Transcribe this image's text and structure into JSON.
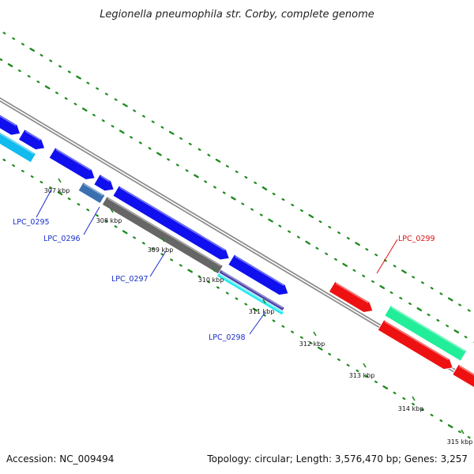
{
  "title": "Legionella pneumophila str. Corby, complete genome",
  "footer": {
    "accession": "Accession: NC_009494",
    "summary": "Topology: circular; Length: 3,576,470 bp; Genes: 3,257"
  },
  "ticks": [
    "307 kbp",
    "308 kbp",
    "309 kbp",
    "310 kbp",
    "311 kbp",
    "312 kbp",
    "313 kbp",
    "314 kbp",
    "315 kbp"
  ],
  "genes": [
    {
      "label": "LPC_0295",
      "color": "#1a2fcc"
    },
    {
      "label": "LPC_0296",
      "color": "#1a2fcc"
    },
    {
      "label": "LPC_0297",
      "color": "#1a2fcc"
    },
    {
      "label": "LPC_0298",
      "color": "#1a2fcc"
    },
    {
      "label": "LPC_0299",
      "color": "#e01010"
    }
  ],
  "colors": {
    "cds_forward": "#1010ee",
    "cds_light": "#11bbee",
    "cds_red": "#ee1111",
    "cds_green": "#22ee99",
    "cds_gray": "#666666",
    "cds_cyan": "#22e8ee",
    "cds_purple": "#4a3faa",
    "cds_steel": "#3a6fb0",
    "backbone": "#888888",
    "dots": "#1f8a1f"
  }
}
